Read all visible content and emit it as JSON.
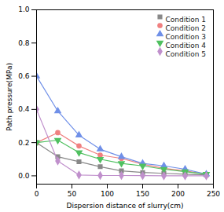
{
  "chart_data": {
    "type": "line",
    "xlabel": "Dispersion distance of slurry(cm)",
    "ylabel": "Path pressure(MPa)",
    "xlim": [
      0,
      250
    ],
    "ylim": [
      -0.05,
      1.0
    ],
    "xticks": [
      0,
      50,
      100,
      150,
      200,
      250
    ],
    "yticks": [
      {
        "value": 0.0,
        "label": "0.0"
      },
      0.2,
      0.4,
      0.6,
      0.8,
      {
        "value": 1.0,
        "label": "1.0"
      }
    ],
    "x": [
      0,
      30,
      60,
      90,
      120,
      150,
      180,
      210,
      240
    ],
    "series": [
      {
        "name": "Condition 1",
        "color": "#888888",
        "marker": "square",
        "values": [
          0.2,
          0.115,
          0.085,
          0.055,
          0.03,
          0.02,
          0.015,
          0.01,
          0.005
        ]
      },
      {
        "name": "Condition 2",
        "color": "#f08080",
        "marker": "circle",
        "values": [
          0.2,
          0.26,
          0.18,
          0.125,
          0.105,
          0.07,
          0.045,
          0.03,
          0.01
        ]
      },
      {
        "name": "Condition 3",
        "color": "#7090e8",
        "marker": "triangle-up",
        "values": [
          0.6,
          0.39,
          0.245,
          0.16,
          0.115,
          0.075,
          0.06,
          0.04,
          0.01
        ]
      },
      {
        "name": "Condition 4",
        "color": "#50c060",
        "marker": "triangle-down",
        "values": [
          0.2,
          0.215,
          0.14,
          0.1,
          0.075,
          0.06,
          0.04,
          0.025,
          0.01
        ]
      },
      {
        "name": "Condition 5",
        "color": "#c090cc",
        "marker": "diamond",
        "values": [
          0.4,
          0.09,
          0.005,
          0.002,
          0.002,
          0.001,
          0.0,
          0.0,
          0.0
        ]
      }
    ],
    "legend": "upper right",
    "grid": false
  }
}
